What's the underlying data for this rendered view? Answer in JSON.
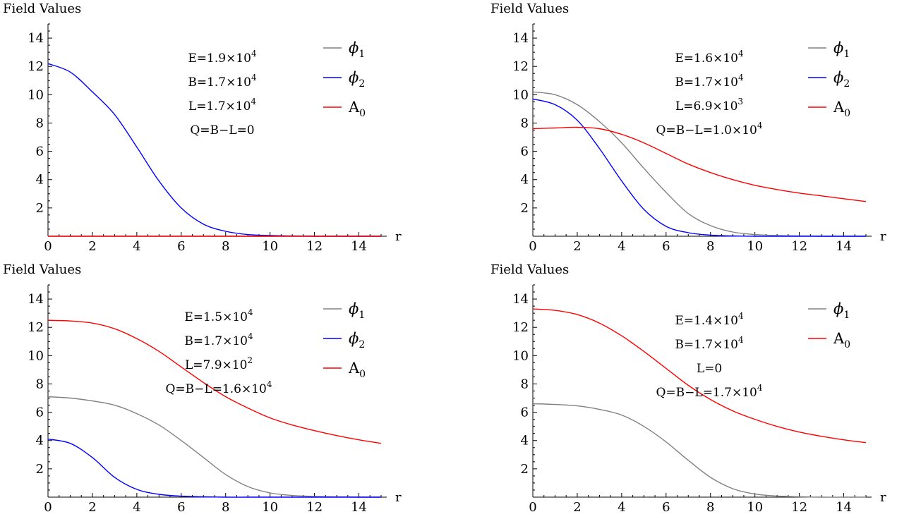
{
  "colors": {
    "phi1": "#808080",
    "phi2": "#0000ff",
    "A0": "#ff0000"
  },
  "chart_data": [
    {
      "type": "line",
      "ylabel": "Field Values",
      "xlabel": "r",
      "xlim": [
        0,
        15
      ],
      "ylim": [
        0,
        15
      ],
      "xticks": [
        "0",
        "2",
        "4",
        "6",
        "8",
        "10",
        "12",
        "14"
      ],
      "yticks": [
        "2",
        "4",
        "6",
        "8",
        "10",
        "12",
        "14"
      ],
      "annotations": [
        {
          "base": "E=1.9×10",
          "exp": "4"
        },
        {
          "base": "B=1.7×10",
          "exp": "4"
        },
        {
          "base": "L=1.7×10",
          "exp": "4"
        },
        {
          "base": "Q=B−L=0",
          "exp": ""
        }
      ],
      "legend": [
        {
          "sym": "ϕ",
          "sub": "1",
          "color": "#808080"
        },
        {
          "sym": "ϕ",
          "sub": "2",
          "color": "#0000ff"
        },
        {
          "sym": "A",
          "sub": "0",
          "color": "#ff0000"
        }
      ],
      "series": [
        {
          "name": "ϕ₁",
          "color": "#808080",
          "x": [
            0,
            15
          ],
          "y": [
            0,
            0
          ]
        },
        {
          "name": "ϕ₂",
          "color": "#0000ff",
          "x": [
            0,
            1,
            2,
            3,
            4,
            5,
            6,
            7,
            8,
            9,
            10,
            11,
            12,
            13,
            14,
            15
          ],
          "y": [
            12.2,
            11.6,
            10.2,
            8.6,
            6.3,
            3.9,
            2.0,
            0.85,
            0.35,
            0.12,
            0.05,
            0.02,
            0.0,
            0.0,
            0.0,
            0.0
          ]
        },
        {
          "name": "A₀",
          "color": "#ff0000",
          "x": [
            0,
            15
          ],
          "y": [
            0,
            0
          ]
        }
      ]
    },
    {
      "type": "line",
      "ylabel": "Field Values",
      "xlabel": "r",
      "xlim": [
        0,
        15
      ],
      "ylim": [
        0,
        15
      ],
      "xticks": [
        "0",
        "2",
        "4",
        "6",
        "8",
        "10",
        "12",
        "14"
      ],
      "yticks": [
        "2",
        "4",
        "6",
        "8",
        "10",
        "12",
        "14"
      ],
      "annotations": [
        {
          "base": "E=1.6×10",
          "exp": "4"
        },
        {
          "base": "B=1.7×10",
          "exp": "4"
        },
        {
          "base": "L=6.9×10",
          "exp": "3"
        },
        {
          "base": "Q=B−L=1.0×10",
          "exp": "4"
        }
      ],
      "legend": [
        {
          "sym": "ϕ",
          "sub": "1",
          "color": "#808080"
        },
        {
          "sym": "ϕ",
          "sub": "2",
          "color": "#0000ff"
        },
        {
          "sym": "A",
          "sub": "0",
          "color": "#ff0000"
        }
      ],
      "series": [
        {
          "name": "ϕ₁",
          "color": "#808080",
          "x": [
            0,
            1,
            2,
            3,
            4,
            5,
            6,
            7,
            8,
            9,
            10,
            11,
            12,
            13,
            14,
            15
          ],
          "y": [
            10.2,
            10.0,
            9.3,
            8.1,
            6.6,
            4.8,
            3.1,
            1.6,
            0.75,
            0.3,
            0.12,
            0.05,
            0.02,
            0.0,
            0.0,
            0.0
          ]
        },
        {
          "name": "ϕ₂",
          "color": "#0000ff",
          "x": [
            0,
            1,
            2,
            3,
            4,
            5,
            6,
            7,
            8,
            9,
            10,
            11,
            12,
            13,
            14,
            15
          ],
          "y": [
            9.7,
            9.3,
            8.2,
            6.2,
            3.9,
            1.9,
            0.7,
            0.25,
            0.08,
            0.02,
            0.0,
            0.0,
            0.0,
            0.0,
            0.0,
            0.0
          ]
        },
        {
          "name": "A₀",
          "color": "#ff0000",
          "x": [
            0,
            1,
            2,
            3,
            4,
            5,
            6,
            7,
            8,
            9,
            10,
            11,
            12,
            13,
            14,
            15
          ],
          "y": [
            7.6,
            7.65,
            7.7,
            7.6,
            7.2,
            6.6,
            5.85,
            5.1,
            4.5,
            4.0,
            3.6,
            3.3,
            3.05,
            2.85,
            2.65,
            2.45
          ]
        }
      ]
    },
    {
      "type": "line",
      "ylabel": "Field Values",
      "xlabel": "r",
      "xlim": [
        0,
        15
      ],
      "ylim": [
        0,
        15
      ],
      "xticks": [
        "0",
        "2",
        "4",
        "6",
        "8",
        "10",
        "12",
        "14"
      ],
      "yticks": [
        "2",
        "4",
        "6",
        "8",
        "10",
        "12",
        "14"
      ],
      "annotations": [
        {
          "base": "E=1.5×10",
          "exp": "4"
        },
        {
          "base": "B=1.7×10",
          "exp": "4"
        },
        {
          "base": "L=7.9×10",
          "exp": "2"
        },
        {
          "base": "Q=B−L=1.6×10",
          "exp": "4"
        }
      ],
      "legend": [
        {
          "sym": "ϕ",
          "sub": "1",
          "color": "#808080"
        },
        {
          "sym": "ϕ",
          "sub": "2",
          "color": "#0000ff"
        },
        {
          "sym": "A",
          "sub": "0",
          "color": "#ff0000"
        }
      ],
      "series": [
        {
          "name": "ϕ₁",
          "color": "#808080",
          "x": [
            0,
            1,
            2,
            3,
            4,
            5,
            6,
            7,
            8,
            9,
            10,
            11,
            12,
            13,
            14,
            15
          ],
          "y": [
            7.1,
            7.0,
            6.8,
            6.5,
            5.9,
            5.1,
            4.0,
            2.8,
            1.6,
            0.75,
            0.3,
            0.12,
            0.05,
            0.02,
            0.0,
            0.0
          ]
        },
        {
          "name": "ϕ₂",
          "color": "#0000ff",
          "x": [
            0,
            1,
            2,
            3,
            4,
            5,
            6,
            7,
            8,
            9,
            10,
            11,
            12,
            13,
            14,
            15
          ],
          "y": [
            4.1,
            3.8,
            2.8,
            1.4,
            0.55,
            0.2,
            0.07,
            0.02,
            0.0,
            0.0,
            0.0,
            0.0,
            0.0,
            0.0,
            0.0,
            0.0
          ]
        },
        {
          "name": "A₀",
          "color": "#ff0000",
          "x": [
            0,
            1,
            2,
            3,
            4,
            5,
            6,
            7,
            8,
            9,
            10,
            11,
            12,
            13,
            14,
            15
          ],
          "y": [
            12.5,
            12.45,
            12.3,
            11.9,
            11.2,
            10.3,
            9.2,
            8.1,
            7.1,
            6.3,
            5.6,
            5.1,
            4.7,
            4.35,
            4.05,
            3.8
          ]
        }
      ]
    },
    {
      "type": "line",
      "ylabel": "Field Values",
      "xlabel": "r",
      "xlim": [
        0,
        15
      ],
      "ylim": [
        0,
        15
      ],
      "xticks": [
        "0",
        "2",
        "4",
        "6",
        "8",
        "10",
        "12",
        "14"
      ],
      "yticks": [
        "2",
        "4",
        "6",
        "8",
        "10",
        "12",
        "14"
      ],
      "annotations": [
        {
          "base": "E=1.4×10",
          "exp": "4"
        },
        {
          "base": "B=1.7×10",
          "exp": "4"
        },
        {
          "base": "L=0",
          "exp": ""
        },
        {
          "base": "Q=B−L=1.7×10",
          "exp": "4"
        }
      ],
      "legend": [
        {
          "sym": "ϕ",
          "sub": "1",
          "color": "#808080"
        },
        {
          "sym": "A",
          "sub": "0",
          "color": "#ff0000"
        }
      ],
      "series": [
        {
          "name": "ϕ₁",
          "color": "#808080",
          "x": [
            0,
            1,
            2,
            3,
            4,
            5,
            6,
            7,
            8,
            9,
            10,
            11,
            12,
            13,
            14,
            15
          ],
          "y": [
            6.6,
            6.55,
            6.45,
            6.2,
            5.8,
            5.0,
            3.9,
            2.6,
            1.4,
            0.6,
            0.22,
            0.08,
            0.03,
            0.0,
            0.0,
            0.0
          ]
        },
        {
          "name": "A₀",
          "color": "#ff0000",
          "x": [
            0,
            1,
            2,
            3,
            4,
            5,
            6,
            7,
            8,
            9,
            10,
            11,
            12,
            13,
            14,
            15
          ],
          "y": [
            13.3,
            13.2,
            12.9,
            12.3,
            11.4,
            10.3,
            9.1,
            7.9,
            6.9,
            6.1,
            5.5,
            5.0,
            4.6,
            4.3,
            4.05,
            3.85
          ]
        }
      ]
    }
  ]
}
